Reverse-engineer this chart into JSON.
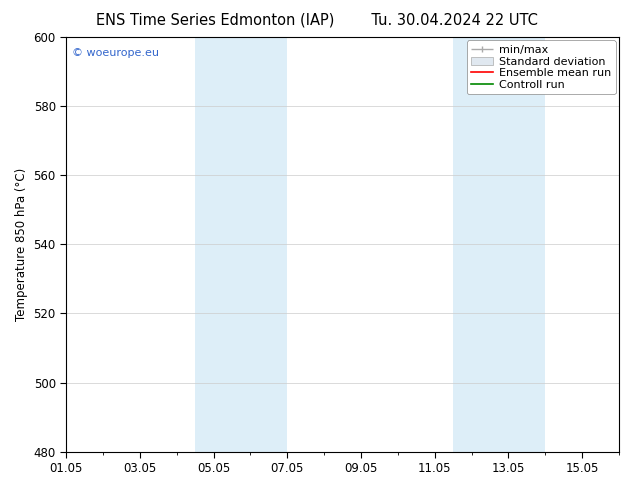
{
  "title_left": "ENS Time Series Edmonton (IAP)",
  "title_right": "Tu. 30.04.2024 22 UTC",
  "ylabel": "Temperature 850 hPa (°C)",
  "ylim": [
    480,
    600
  ],
  "yticks": [
    480,
    500,
    520,
    540,
    560,
    580,
    600
  ],
  "xlim": [
    0,
    15
  ],
  "xtick_labels": [
    "01.05",
    "03.05",
    "05.05",
    "07.05",
    "09.05",
    "11.05",
    "13.05",
    "15.05"
  ],
  "xtick_positions": [
    0,
    2,
    4,
    6,
    8,
    10,
    12,
    14
  ],
  "shaded_bands": [
    {
      "x_start": 3.5,
      "x_end": 6.0,
      "color": "#ddeef8"
    },
    {
      "x_start": 10.5,
      "x_end": 13.0,
      "color": "#ddeef8"
    }
  ],
  "legend_labels": [
    "min/max",
    "Standard deviation",
    "Ensemble mean run",
    "Controll run"
  ],
  "legend_line_colors": [
    "#aaaaaa",
    "#cccccc",
    "#ff0000",
    "#008800"
  ],
  "watermark": "© woeurope.eu",
  "watermark_color": "#3366cc",
  "background_color": "#ffffff",
  "plot_bg_color": "#ffffff",
  "title_fontsize": 10.5,
  "tick_fontsize": 8.5,
  "ylabel_fontsize": 8.5,
  "legend_fontsize": 8.0
}
